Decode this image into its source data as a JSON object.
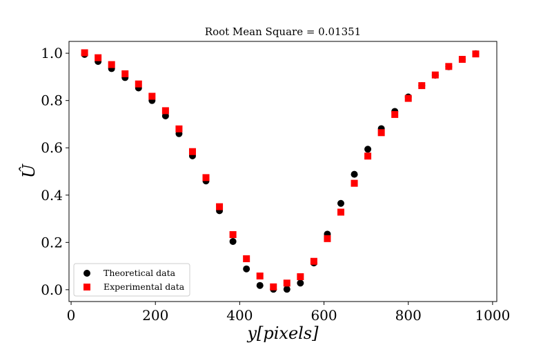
{
  "chart_data": {
    "type": "scatter",
    "title": "Root Mean Square = 0.01351",
    "xlabel": "y[pixels]",
    "ylabel": "Û",
    "xlim": [
      -5,
      1010
    ],
    "ylim": [
      -0.05,
      1.05
    ],
    "xticks": [
      0,
      200,
      400,
      600,
      800,
      1000
    ],
    "yticks": [
      0.0,
      0.2,
      0.4,
      0.6,
      0.8,
      1.0
    ],
    "xtick_labels": [
      "0",
      "200",
      "400",
      "600",
      "800",
      "1000"
    ],
    "ytick_labels": [
      "0.0",
      "0.2",
      "0.4",
      "0.6",
      "0.8",
      "1.0"
    ],
    "grid": false,
    "legend_position": "lower-left",
    "series": [
      {
        "name": "Theoretical data",
        "marker": "circle",
        "color": "#000000",
        "x": [
          32,
          64,
          96,
          128,
          160,
          192,
          224,
          256,
          288,
          320,
          352,
          384,
          416,
          448,
          480,
          512,
          544,
          576,
          608,
          640,
          672,
          704,
          736,
          768,
          800,
          832,
          864,
          896,
          928,
          960
        ],
        "y": [
          0.995,
          0.965,
          0.935,
          0.897,
          0.853,
          0.8,
          0.735,
          0.66,
          0.566,
          0.46,
          0.334,
          0.204,
          0.088,
          0.018,
          0.002,
          0.002,
          0.028,
          0.113,
          0.235,
          0.365,
          0.488,
          0.594,
          0.681,
          0.754,
          0.815,
          0.863,
          0.907,
          0.943,
          0.974,
          0.998
        ]
      },
      {
        "name": "Experimental data",
        "marker": "square",
        "color": "#ff0000",
        "x": [
          32,
          64,
          96,
          128,
          160,
          192,
          224,
          256,
          288,
          320,
          352,
          384,
          416,
          448,
          480,
          512,
          544,
          576,
          608,
          640,
          672,
          704,
          736,
          768,
          800,
          832,
          864,
          896,
          928,
          960
        ],
        "y": [
          1.002,
          0.981,
          0.952,
          0.913,
          0.87,
          0.818,
          0.757,
          0.68,
          0.584,
          0.474,
          0.351,
          0.233,
          0.131,
          0.058,
          0.012,
          0.028,
          0.055,
          0.12,
          0.216,
          0.328,
          0.45,
          0.565,
          0.664,
          0.741,
          0.809,
          0.863,
          0.908,
          0.944,
          0.974,
          0.997
        ]
      }
    ]
  }
}
